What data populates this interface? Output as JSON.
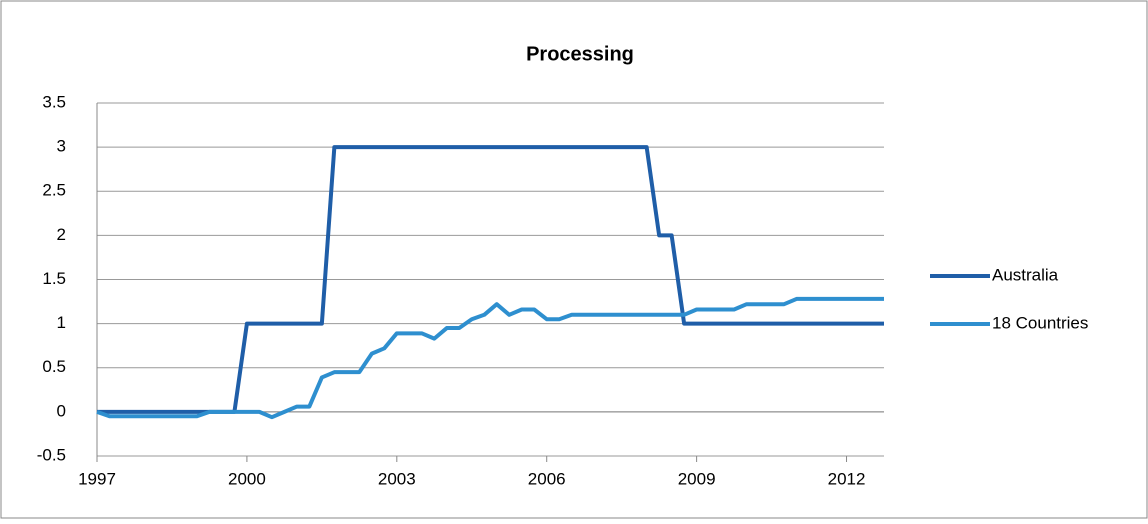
{
  "chart_data": {
    "type": "line",
    "title": "Processing",
    "x": [
      1997,
      1997.25,
      1997.5,
      1997.75,
      1998,
      1998.25,
      1998.5,
      1998.75,
      1999,
      1999.25,
      1999.5,
      1999.75,
      2000,
      2000.25,
      2000.5,
      2000.75,
      2001,
      2001.25,
      2001.5,
      2001.75,
      2002,
      2002.25,
      2002.5,
      2002.75,
      2003,
      2003.25,
      2003.5,
      2003.75,
      2004,
      2004.25,
      2004.5,
      2004.75,
      2005,
      2005.25,
      2005.5,
      2005.75,
      2006,
      2006.25,
      2006.5,
      2006.75,
      2007,
      2007.25,
      2007.5,
      2007.75,
      2008,
      2008.25,
      2008.5,
      2008.75,
      2009,
      2009.25,
      2009.5,
      2009.75,
      2010,
      2010.25,
      2010.5,
      2010.75,
      2011,
      2011.25,
      2011.5,
      2011.75,
      2012,
      2012.25,
      2012.5,
      2012.75
    ],
    "series": [
      {
        "name": "Australia",
        "color": "#1f5ea8",
        "values": [
          0,
          0,
          0,
          0,
          0,
          0,
          0,
          0,
          0,
          0,
          0,
          0,
          1,
          1,
          1,
          1,
          1,
          1,
          1,
          3,
          3,
          3,
          3,
          3,
          3,
          3,
          3,
          3,
          3,
          3,
          3,
          3,
          3,
          3,
          3,
          3,
          3,
          3,
          3,
          3,
          3,
          3,
          3,
          3,
          3,
          2,
          2,
          1,
          1,
          1,
          1,
          1,
          1,
          1,
          1,
          1,
          1,
          1,
          1,
          1,
          1,
          1,
          1,
          1
        ]
      },
      {
        "name": "18 Countries",
        "color": "#2e8fcf",
        "values": [
          0,
          -0.05,
          -0.05,
          -0.05,
          -0.05,
          -0.05,
          -0.05,
          -0.05,
          -0.05,
          0,
          0,
          0,
          0,
          0,
          -0.06,
          0,
          0.06,
          0.06,
          0.39,
          0.45,
          0.45,
          0.45,
          0.66,
          0.72,
          0.89,
          0.89,
          0.89,
          0.83,
          0.95,
          0.95,
          1.05,
          1.1,
          1.22,
          1.1,
          1.16,
          1.16,
          1.05,
          1.05,
          1.1,
          1.1,
          1.1,
          1.1,
          1.1,
          1.1,
          1.1,
          1.1,
          1.1,
          1.1,
          1.16,
          1.16,
          1.16,
          1.16,
          1.22,
          1.22,
          1.22,
          1.22,
          1.28,
          1.28,
          1.28,
          1.28,
          1.28,
          1.28,
          1.28,
          1.28
        ]
      }
    ],
    "xlim": [
      1997,
      2012.75
    ],
    "xticks": [
      1997,
      2000,
      2003,
      2006,
      2009,
      2012
    ],
    "ylim": [
      -0.5,
      3.5
    ],
    "yticks": [
      -0.5,
      0,
      0.5,
      1,
      1.5,
      2,
      2.5,
      3,
      3.5
    ],
    "grid": true,
    "legend": "right"
  }
}
